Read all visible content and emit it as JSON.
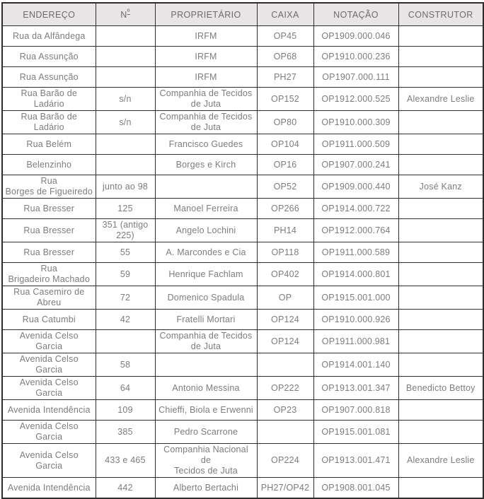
{
  "table": {
    "columns": [
      {
        "key": "endereco",
        "label": "ENDEREÇO"
      },
      {
        "key": "numero",
        "label": "Nº"
      },
      {
        "key": "proprietario",
        "label": "PROPRIETÁRIO"
      },
      {
        "key": "caixa",
        "label": "CAIXA"
      },
      {
        "key": "notacao",
        "label": "NOTAÇÃO"
      },
      {
        "key": "construtor",
        "label": "CONSTRUTOR"
      }
    ],
    "rows": [
      [
        "Rua da Alfândega",
        "",
        "IRFM",
        "OP45",
        "OP1909.000.046",
        ""
      ],
      [
        "Rua Assunção",
        "",
        "IRFM",
        "OP68",
        "OP1910.000.236",
        ""
      ],
      [
        "Rua Assunção",
        "",
        "IRFM",
        "PH27",
        "OP1907.000.111",
        ""
      ],
      [
        "Rua Barão de Ladário",
        "s/n",
        "Companhia de Tecidos\nde Juta",
        "OP152",
        "OP1912.000.525",
        "Alexandre Leslie"
      ],
      [
        "Rua Barão de Ladário",
        "s/n",
        "Companhia de Tecidos\nde Juta",
        "OP80",
        "OP1910.000.309",
        ""
      ],
      [
        "Rua Belém",
        "",
        "Francisco Guedes",
        "OP104",
        "OP1911.000.509",
        ""
      ],
      [
        "Belenzinho",
        "",
        "Borges e Kirch",
        "OP16",
        "OP1907.000.241",
        ""
      ],
      [
        "Rua\nBorges de Figueiredo",
        "junto ao 98",
        "",
        "OP52",
        "OP1909.000.440",
        "José Kanz"
      ],
      [
        "Rua Bresser",
        "125",
        "Manoel Ferreira",
        "OP266",
        "OP1914.000.722",
        ""
      ],
      [
        "Rua Bresser",
        "351 (antigo\n225)",
        "Angelo Lochini",
        "PH14",
        "OP1912.000.764",
        ""
      ],
      [
        "Rua Bresser",
        "55",
        "A. Marcondes e Cia",
        "OP118",
        "OP1911.000.589",
        ""
      ],
      [
        "Rua\nBrigadeiro Machado",
        "59",
        "Henrique Fachlam",
        "OP402",
        "OP1914.000.801",
        ""
      ],
      [
        "Rua Casemiro de\nAbreu",
        "72",
        "Domenico Spadula",
        "OP",
        "OP1915.001.000",
        ""
      ],
      [
        "Rua Catumbi",
        "42",
        "Fratelli Mortari",
        "OP124",
        "OP1910.000.926",
        ""
      ],
      [
        "Avenida Celso Garcia",
        "",
        "Companhia de Tecidos\nde Juta",
        "OP124",
        "OP1911.000.981",
        ""
      ],
      [
        "Avenida Celso Garcia",
        "58",
        "",
        "",
        "OP1914.001.140",
        ""
      ],
      [
        "Avenida Celso Garcia",
        "64",
        "Antonio Messina",
        "OP222",
        "OP1913.001.347",
        "Benedicto Bettoy"
      ],
      [
        "Avenida Intendência",
        "109",
        "Chieffi, Biola e Erwenni",
        "OP23",
        "OP1907.000.818",
        ""
      ],
      [
        "Avenida Celso Garcia",
        "385",
        "Pedro Scarrone",
        "",
        "OP1915.001.081",
        ""
      ],
      [
        "Avenida Celso Garcia",
        "433 e 465",
        "Companhia Nacional de\nTecidos de Juta",
        "OP224",
        "OP1913.001.471",
        "Alexandre Leslie"
      ],
      [
        "Avenida Intendência",
        "442",
        "Alberto Bertachi",
        "PH27/OP42",
        "OP1908.001.045",
        ""
      ]
    ]
  },
  "colors": {
    "header_bg": "#e9e5e6",
    "header_text": "#6b6b6b",
    "body_text": "#7d7d7d",
    "border": "#2d2d2d"
  }
}
